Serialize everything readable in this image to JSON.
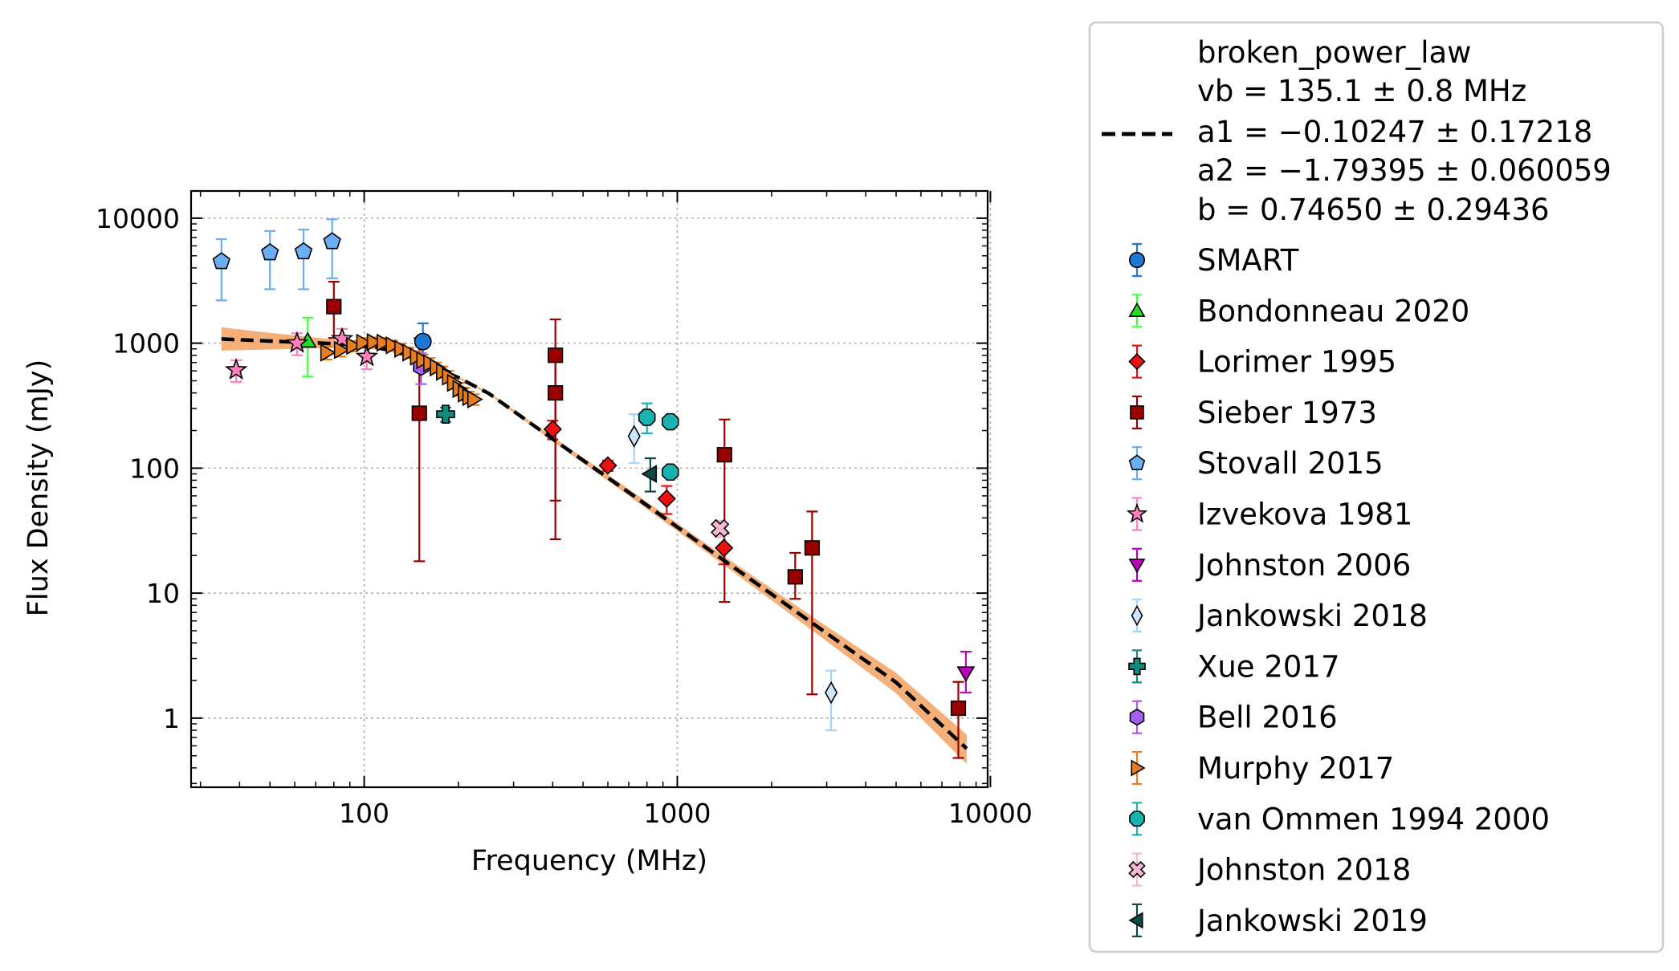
{
  "chart_data": {
    "type": "scatter",
    "xlabel": "Frequency (MHz)",
    "ylabel": "Flux Density (mJy)",
    "xscale": "log",
    "yscale": "log",
    "xlim": [
      28,
      9800
    ],
    "ylim": [
      0.28,
      16500
    ],
    "xticks": [
      100,
      1000,
      10000
    ],
    "xtick_labels": [
      "100",
      "1000",
      "10000"
    ],
    "yticks": [
      1,
      10,
      100,
      1000,
      10000
    ],
    "ytick_labels": [
      "1",
      "10",
      "100",
      "1000",
      "10000"
    ],
    "grid": true,
    "legend_placement": "outside right",
    "fit": {
      "name": "broken_power_law",
      "params": [
        "vb = 135.1 ± 0.8 MHz",
        "a1 = −0.10247 ± 0.17218",
        "a2 = −1.79395 ± 0.060059",
        "b = 0.74650 ± 0.29436"
      ],
      "x": [
        35,
        50,
        70,
        90,
        110,
        125,
        135.1,
        150,
        175,
        200,
        250,
        400,
        700,
        1400,
        2800,
        5000,
        8400
      ],
      "y": [
        1080,
        1040,
        1005,
        975,
        920,
        860,
        810,
        720,
        610,
        530,
        396,
        171,
        64,
        18.5,
        5.4,
        1.93,
        0.57
      ],
      "band_low": [
        870,
        890,
        910,
        920,
        890,
        840,
        795,
        705,
        598,
        520,
        388,
        164,
        60,
        17.0,
        4.7,
        1.58,
        0.43
      ],
      "band_high": [
        1340,
        1210,
        1110,
        1035,
        955,
        880,
        825,
        735,
        622,
        540,
        404,
        178,
        68,
        20.0,
        6.1,
        2.3,
        0.74
      ],
      "line_color": "#000000",
      "band_color": "#f5b07a"
    },
    "series": [
      {
        "name": "SMART",
        "marker": "circle",
        "color": "#1f77d4",
        "ecolor": "#1f77d4",
        "points": [
          [
            154,
            1030,
            720,
            1440
          ]
        ]
      },
      {
        "name": "Bondonneau 2020",
        "marker": "triangle-up",
        "color": "#22dd22",
        "ecolor": "#44ff44",
        "points": [
          [
            66,
            1040,
            540,
            1600
          ]
        ]
      },
      {
        "name": "Lorimer 1995",
        "marker": "diamond",
        "color": "#ee1111",
        "ecolor": "#ee1111",
        "points": [
          [
            400,
            205,
            170,
            240
          ],
          [
            600,
            105,
            95,
            115
          ],
          [
            925,
            57,
            43,
            72
          ],
          [
            1410,
            23,
            17,
            30
          ]
        ]
      },
      {
        "name": "Sieber 1973",
        "marker": "square",
        "color": "#990000",
        "ecolor": "#990000",
        "points": [
          [
            80,
            1960,
            1100,
            3100
          ],
          [
            150,
            275,
            18,
            1100
          ],
          [
            408,
            800,
            27,
            1550
          ],
          [
            408,
            400,
            55,
            750
          ],
          [
            1415,
            128,
            8.5,
            245
          ],
          [
            2380,
            13.5,
            9,
            21
          ],
          [
            2695,
            23,
            1.55,
            45
          ],
          [
            7900,
            1.2,
            0.48,
            1.95
          ]
        ]
      },
      {
        "name": "Stovall 2015",
        "marker": "pentagon",
        "color": "#6aaef5",
        "ecolor": "#6aaef5",
        "points": [
          [
            35,
            4500,
            2200,
            6800
          ],
          [
            50,
            5300,
            2700,
            7900
          ],
          [
            64,
            5400,
            2700,
            8100
          ],
          [
            79,
            6500,
            3300,
            9800
          ]
        ]
      },
      {
        "name": "Izvekova 1981",
        "marker": "star",
        "color": "#ff7fbf",
        "ecolor": "#ff7fbf",
        "points": [
          [
            39,
            610,
            490,
            730
          ],
          [
            61,
            1000,
            800,
            1200
          ],
          [
            85,
            1080,
            850,
            1300
          ],
          [
            102,
            780,
            620,
            930
          ]
        ]
      },
      {
        "name": "Johnston 2006",
        "marker": "triangle-down",
        "color": "#bb00bb",
        "ecolor": "#bb00bb",
        "points": [
          [
            8350,
            2.3,
            1.6,
            3.4
          ]
        ]
      },
      {
        "name": "Jankowski 2018",
        "marker": "thin-diamond",
        "color": "#cce6ff",
        "ecolor": "#a8d4f7",
        "points": [
          [
            728,
            180,
            110,
            270
          ],
          [
            3100,
            1.6,
            0.8,
            2.4
          ]
        ]
      },
      {
        "name": "Xue 2017",
        "marker": "plus",
        "color": "#128a80",
        "ecolor": "#128a80",
        "points": [
          [
            182,
            270,
            235,
            305
          ]
        ]
      },
      {
        "name": "Bell 2016",
        "marker": "hexagon",
        "color": "#a55ef0",
        "ecolor": "#a55ef0",
        "points": [
          [
            152,
            650,
            470,
            830
          ]
        ]
      },
      {
        "name": "Murphy 2017",
        "marker": "triangle-right",
        "color": "#e67e1f",
        "ecolor": "#e67e1f",
        "points": [
          [
            76,
            840,
            740,
            940
          ],
          [
            84,
            880,
            780,
            980
          ],
          [
            92,
            950,
            860,
            1040
          ],
          [
            99,
            1010,
            920,
            1100
          ],
          [
            107,
            1020,
            930,
            1110
          ],
          [
            115,
            1010,
            920,
            1100
          ],
          [
            123,
            960,
            870,
            1050
          ],
          [
            131,
            900,
            810,
            990
          ],
          [
            139,
            840,
            760,
            920
          ],
          [
            147,
            780,
            700,
            860
          ],
          [
            154,
            730,
            650,
            810
          ],
          [
            162,
            690,
            620,
            760
          ],
          [
            170,
            640,
            580,
            700
          ],
          [
            178,
            590,
            530,
            650
          ],
          [
            186,
            540,
            480,
            600
          ],
          [
            193,
            480,
            430,
            530
          ],
          [
            201,
            430,
            380,
            480
          ],
          [
            209,
            395,
            350,
            440
          ],
          [
            216,
            370,
            330,
            410
          ],
          [
            224,
            355,
            320,
            390
          ]
        ]
      },
      {
        "name": "van Ommen 1994 2000",
        "marker": "octagon",
        "color": "#18b2b0",
        "ecolor": "#18b2b0",
        "points": [
          [
            800,
            255,
            190,
            330
          ],
          [
            950,
            235,
            225,
            245
          ],
          [
            950,
            93,
            88,
            98
          ]
        ]
      },
      {
        "name": "Johnston 2018",
        "marker": "x-filled",
        "color": "#f7b6d2",
        "ecolor": "#f7b6d2",
        "points": [
          [
            1369,
            33,
            28,
            38
          ]
        ]
      },
      {
        "name": "Jankowski 2019",
        "marker": "triangle-left",
        "color": "#0f4a47",
        "ecolor": "#0f4a47",
        "points": [
          [
            820,
            90,
            65,
            120
          ]
        ]
      }
    ]
  }
}
